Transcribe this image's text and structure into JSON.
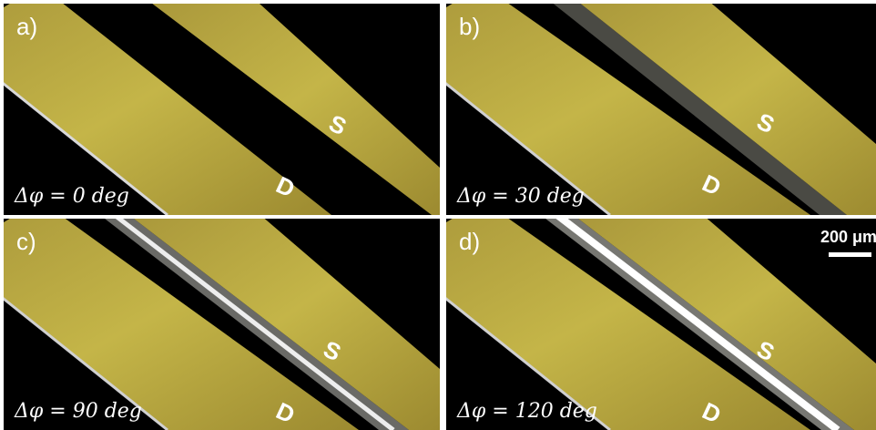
{
  "panels": [
    {
      "label": "a)",
      "phase": "Δφ = 0 deg",
      "source": "S",
      "drain": "D"
    },
    {
      "label": "b)",
      "phase": "Δφ = 30 deg",
      "source": "S",
      "drain": "D"
    },
    {
      "label": "c)",
      "phase": "Δφ = 90 deg",
      "source": "S",
      "drain": "D"
    },
    {
      "label": "d)",
      "phase": "Δφ = 120 deg",
      "source": "S",
      "drain": "D"
    }
  ],
  "scale_bar": {
    "label": "200 μm"
  },
  "colors": {
    "electrode": "#b7a63f",
    "background": "#000000",
    "gap_glow": "#e8e8e8"
  }
}
